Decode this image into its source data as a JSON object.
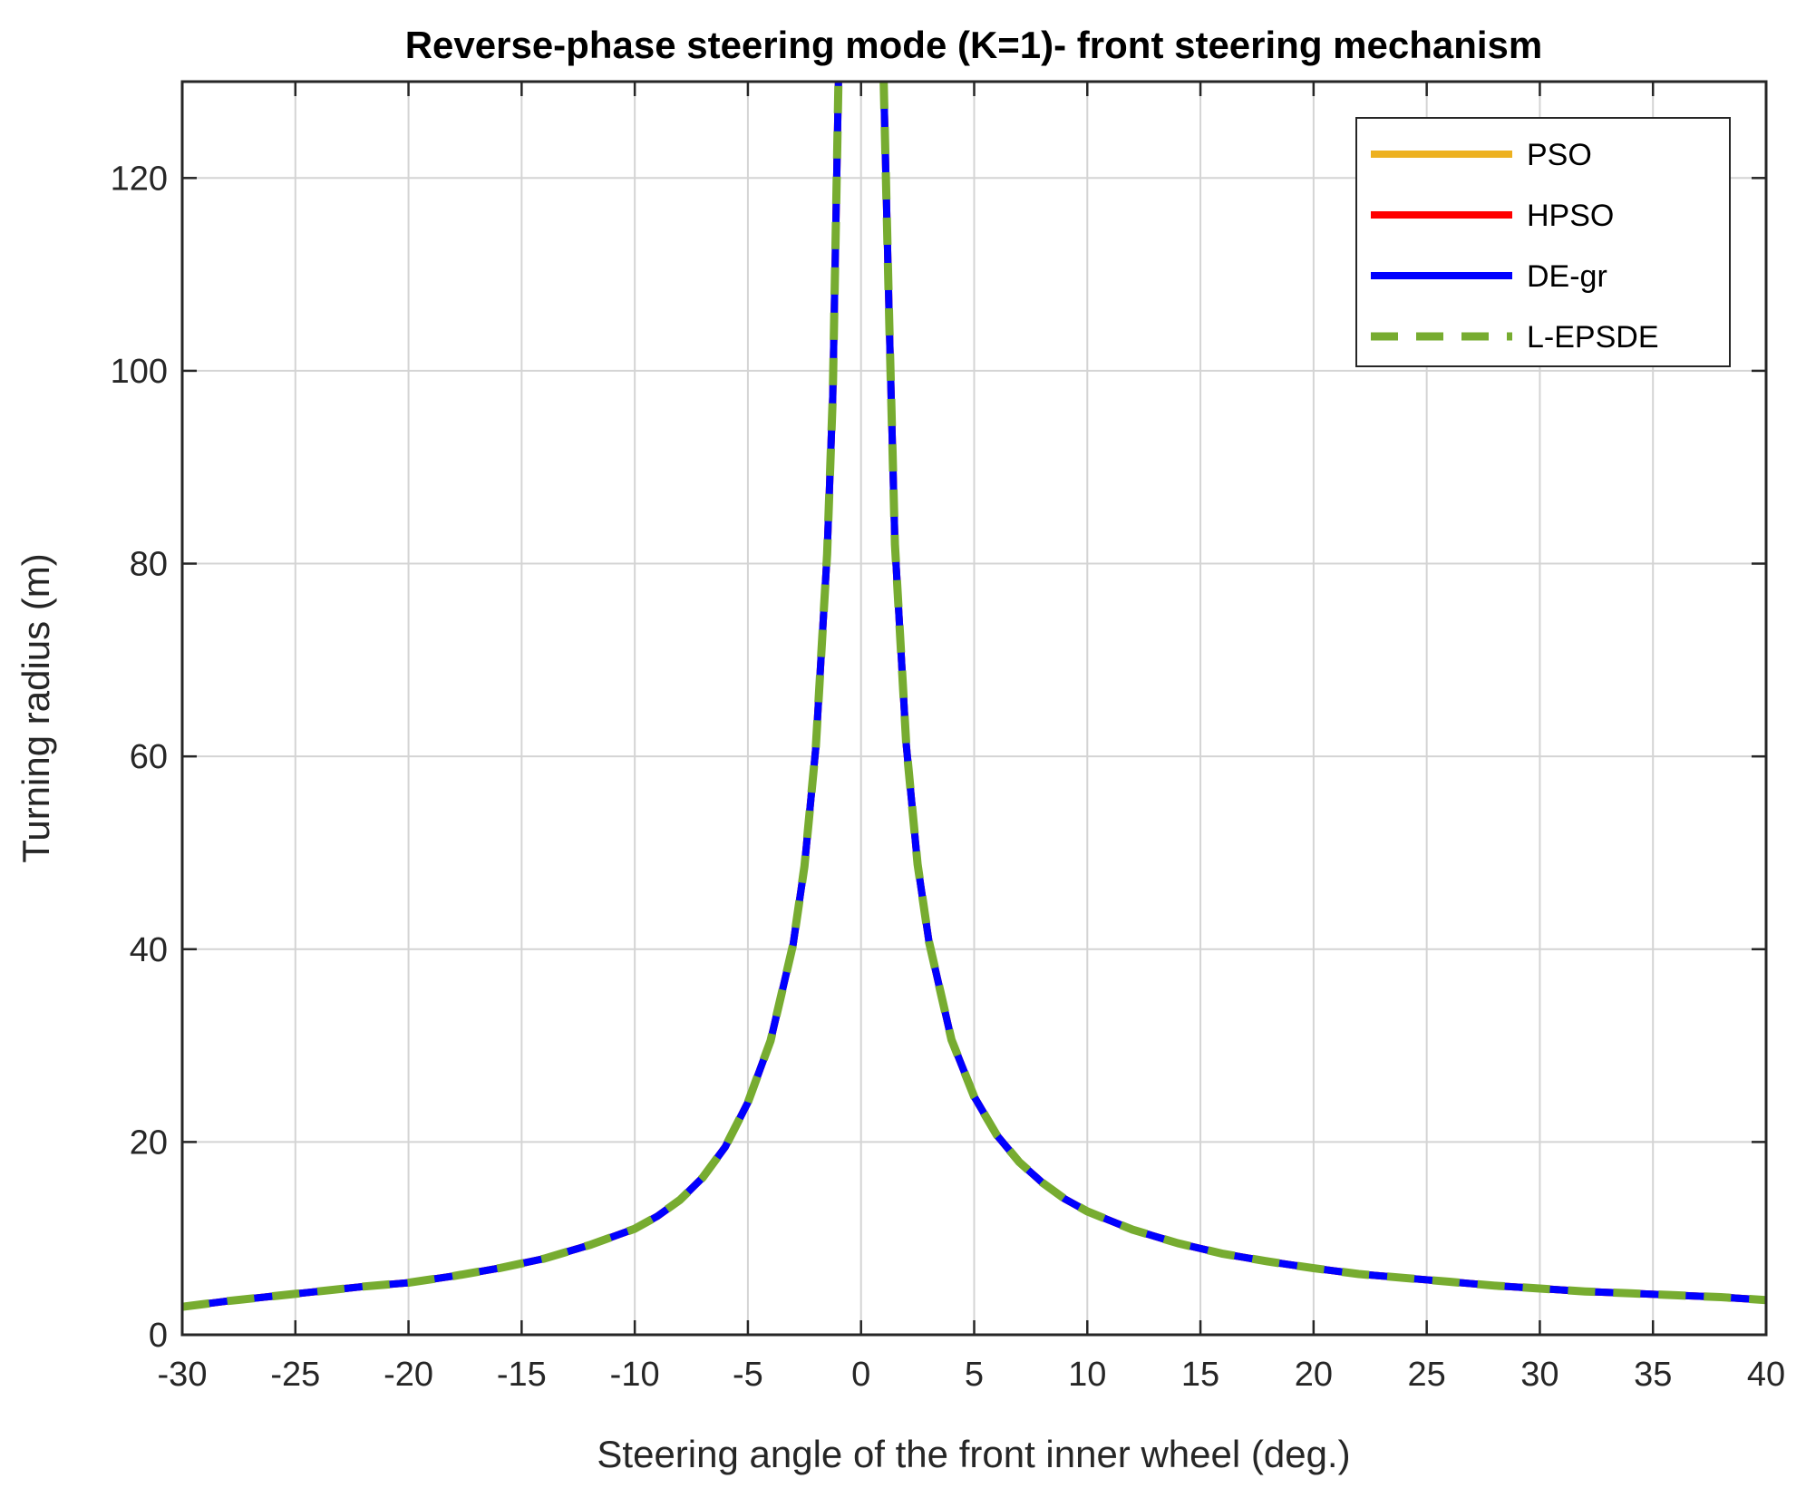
{
  "chart_data": {
    "type": "line",
    "title": "Reverse-phase steering mode (K=1)- front steering mechanism",
    "xlabel": "Steering angle of the front inner wheel (deg.)",
    "ylabel": "Turning radius (m)",
    "xlim": [
      -30,
      40
    ],
    "ylim": [
      0,
      130
    ],
    "xticks": [
      -30,
      -25,
      -20,
      -15,
      -10,
      -5,
      0,
      5,
      10,
      15,
      20,
      25,
      30,
      35,
      40
    ],
    "yticks": [
      0,
      20,
      40,
      60,
      80,
      100,
      120
    ],
    "xtick_labels": [
      "-30",
      "-25",
      "-20",
      "-15",
      "-10",
      "-5",
      "0",
      "5",
      "10",
      "15",
      "20",
      "25",
      "30",
      "35",
      "40"
    ],
    "ytick_labels": [
      "0",
      "20",
      "40",
      "60",
      "80",
      "100",
      "120"
    ],
    "grid": true,
    "legend_position": "top-right",
    "series": [
      {
        "name": "PSO",
        "color": "#EDB120",
        "style": "solid",
        "x": [
          -30,
          -28,
          -26,
          -24,
          -22,
          -20,
          -18,
          -16,
          -14,
          -12,
          -10,
          -9,
          -8,
          -7,
          -6,
          -5,
          -4,
          -3,
          -2.5,
          -2,
          -1.5,
          -1.25,
          -1
        ],
        "y": [
          2.9,
          3.5,
          4.0,
          4.5,
          5.0,
          5.4,
          6.1,
          6.9,
          7.9,
          9.3,
          11.0,
          12.3,
          14.0,
          16.3,
          19.5,
          24.1,
          30.5,
          40.5,
          48.6,
          60.9,
          81.0,
          97.3,
          130
        ]
      },
      {
        "name": "HPSO",
        "color": "#FF0000",
        "style": "solid",
        "x": [
          -30,
          -28,
          -26,
          -24,
          -22,
          -20,
          -18,
          -16,
          -14,
          -12,
          -10,
          -9,
          -8,
          -7,
          -6,
          -5,
          -4,
          -3,
          -2.5,
          -2,
          -1.5,
          -1.25,
          -1
        ],
        "y": [
          2.9,
          3.5,
          4.0,
          4.5,
          5.0,
          5.4,
          6.1,
          6.9,
          7.9,
          9.3,
          11.0,
          12.3,
          14.0,
          16.3,
          19.5,
          24.1,
          30.5,
          40.5,
          48.6,
          60.9,
          81.0,
          97.3,
          130
        ]
      },
      {
        "name": "DE-gr",
        "color": "#0000FF",
        "style": "solid",
        "x": [
          -30,
          -28,
          -26,
          -24,
          -22,
          -20,
          -18,
          -16,
          -14,
          -12,
          -10,
          -9,
          -8,
          -7,
          -6,
          -5,
          -4,
          -3,
          -2.5,
          -2,
          -1.5,
          -1.25,
          -1
        ],
        "y": [
          2.9,
          3.5,
          4.0,
          4.5,
          5.0,
          5.4,
          6.1,
          6.9,
          7.9,
          9.3,
          11.0,
          12.3,
          14.0,
          16.3,
          19.5,
          24.1,
          30.5,
          40.5,
          48.6,
          60.9,
          81.0,
          97.3,
          130
        ]
      },
      {
        "name": "L-EPSDE",
        "color": "#77AC30",
        "style": "dashed",
        "x": [
          -30,
          -28,
          -26,
          -24,
          -22,
          -20,
          -18,
          -16,
          -14,
          -12,
          -10,
          -9,
          -8,
          -7,
          -6,
          -5,
          -4,
          -3,
          -2.5,
          -2,
          -1.5,
          -1.25,
          -1
        ],
        "y": [
          2.9,
          3.5,
          4.0,
          4.5,
          5.0,
          5.4,
          6.1,
          6.9,
          7.9,
          9.3,
          11.0,
          12.3,
          14.0,
          16.3,
          19.5,
          24.1,
          30.5,
          40.5,
          48.6,
          60.9,
          81.0,
          97.3,
          130
        ]
      }
    ],
    "series_right": {
      "x": [
        1,
        1.25,
        1.5,
        2,
        2.5,
        3,
        4,
        5,
        6,
        7,
        8,
        9,
        10,
        12,
        14,
        16,
        18,
        20,
        22,
        24,
        26,
        28,
        30,
        32,
        34,
        36,
        38,
        40
      ],
      "y": [
        130,
        104.8,
        82.0,
        61.2,
        48.8,
        40.8,
        30.6,
        24.7,
        20.7,
        17.9,
        15.8,
        14.1,
        12.8,
        10.9,
        9.5,
        8.4,
        7.6,
        6.9,
        6.3,
        5.9,
        5.5,
        5.1,
        4.8,
        4.5,
        4.3,
        4.1,
        3.9,
        3.6
      ]
    }
  }
}
